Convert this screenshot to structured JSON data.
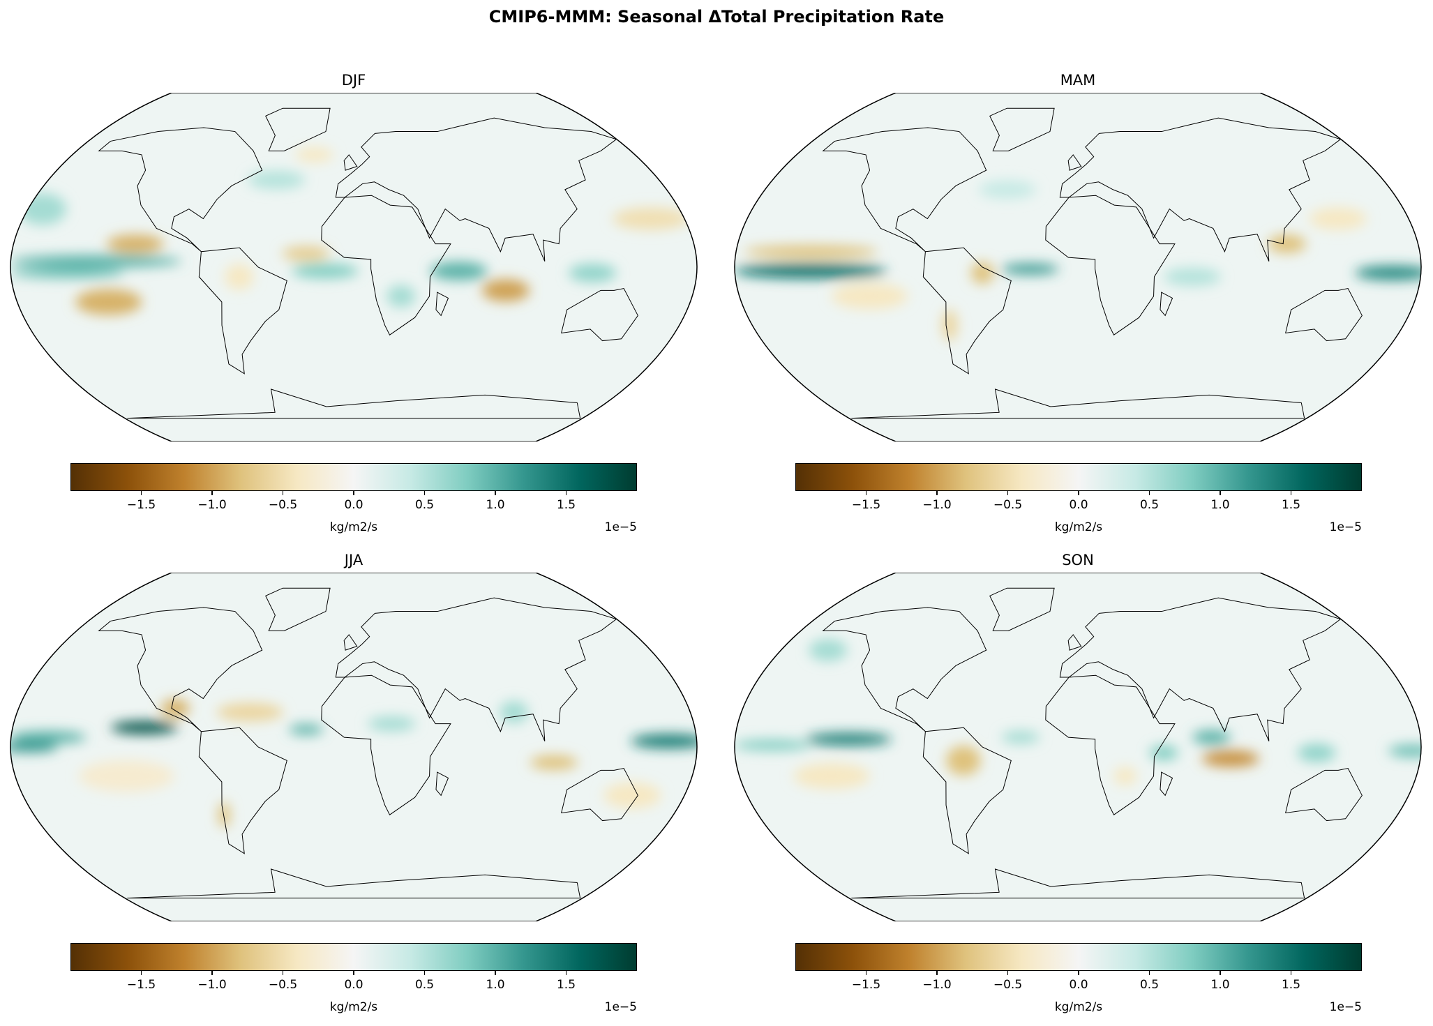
{
  "title": "CMIP6-MMM: Seasonal ΔTotal Precipitation Rate",
  "chart_data": {
    "type": "heatmap",
    "projection": "Robinson",
    "colormap": [
      "#543005",
      "#8c510a",
      "#bf812d",
      "#dfc27d",
      "#f6e8c3",
      "#f5f5f5",
      "#c7eae5",
      "#80cdc1",
      "#35978f",
      "#01665e",
      "#003c30"
    ],
    "colorbar": {
      "label": "kg/m2/s",
      "scale_label": "1e−5",
      "range": [
        -2.0,
        2.0
      ],
      "ticks": [
        -1.5,
        -1.0,
        -0.5,
        0.0,
        0.5,
        1.0,
        1.5
      ],
      "tick_labels": [
        "−1.5",
        "−1.0",
        "−0.5",
        "0.0",
        "0.5",
        "1.0",
        "1.5"
      ]
    },
    "panels": [
      {
        "title": "DJF",
        "regions": [
          {
            "lon": -135,
            "lat": 3,
            "w": 90,
            "h": 5,
            "v": 1.0
          },
          {
            "lon": -150,
            "lat": -3,
            "w": 60,
            "h": 4,
            "v": 0.9
          },
          {
            "lon": -115,
            "lat": 12,
            "w": 30,
            "h": 8,
            "v": -0.9
          },
          {
            "lon": -130,
            "lat": -18,
            "w": 35,
            "h": 12,
            "v": -0.9
          },
          {
            "lon": -25,
            "lat": 7,
            "w": 25,
            "h": 6,
            "v": -0.7
          },
          {
            "lon": -15,
            "lat": -2,
            "w": 35,
            "h": 6,
            "v": 0.8
          },
          {
            "lon": 55,
            "lat": -2,
            "w": 30,
            "h": 8,
            "v": 1.0
          },
          {
            "lon": 80,
            "lat": -12,
            "w": 25,
            "h": 10,
            "v": -1.0
          },
          {
            "lon": 160,
            "lat": 25,
            "w": 40,
            "h": 10,
            "v": -0.5
          },
          {
            "lon": -60,
            "lat": -5,
            "w": 15,
            "h": 12,
            "v": -0.4
          },
          {
            "lon": -45,
            "lat": 45,
            "w": 30,
            "h": 8,
            "v": 0.5
          },
          {
            "lon": -25,
            "lat": 58,
            "w": 20,
            "h": 6,
            "v": -0.4
          },
          {
            "lon": 25,
            "lat": -15,
            "w": 15,
            "h": 10,
            "v": 0.6
          },
          {
            "lon": 125,
            "lat": -3,
            "w": 25,
            "h": 8,
            "v": 0.7
          },
          {
            "lon": -170,
            "lat": 30,
            "w": 25,
            "h": 15,
            "v": 0.6
          }
        ]
      },
      {
        "title": "MAM",
        "regions": [
          {
            "lon": -140,
            "lat": -2,
            "w": 80,
            "h": 6,
            "v": 1.5
          },
          {
            "lon": -140,
            "lat": 8,
            "w": 70,
            "h": 5,
            "v": -0.8
          },
          {
            "lon": -25,
            "lat": -1,
            "w": 30,
            "h": 4,
            "v": 1.2
          },
          {
            "lon": -50,
            "lat": -3,
            "w": 12,
            "h": 10,
            "v": -0.8
          },
          {
            "lon": 165,
            "lat": -3,
            "w": 40,
            "h": 6,
            "v": 1.3
          },
          {
            "lon": 110,
            "lat": 12,
            "w": 20,
            "h": 8,
            "v": -0.8
          },
          {
            "lon": -110,
            "lat": -15,
            "w": 40,
            "h": 12,
            "v": -0.4
          },
          {
            "lon": 60,
            "lat": -5,
            "w": 30,
            "h": 8,
            "v": 0.5
          },
          {
            "lon": 140,
            "lat": 25,
            "w": 30,
            "h": 10,
            "v": -0.4
          },
          {
            "lon": -40,
            "lat": 40,
            "w": 30,
            "h": 8,
            "v": 0.4
          },
          {
            "lon": -70,
            "lat": -30,
            "w": 8,
            "h": 15,
            "v": -0.6
          }
        ]
      },
      {
        "title": "JJA",
        "regions": [
          {
            "lon": -110,
            "lat": 10,
            "w": 35,
            "h": 5,
            "v": 1.8
          },
          {
            "lon": -160,
            "lat": 5,
            "w": 40,
            "h": 5,
            "v": 1.0
          },
          {
            "lon": -170,
            "lat": 0,
            "w": 30,
            "h": 4,
            "v": 1.2
          },
          {
            "lon": 165,
            "lat": 3,
            "w": 40,
            "h": 6,
            "v": 1.4
          },
          {
            "lon": -95,
            "lat": 20,
            "w": 15,
            "h": 8,
            "v": -0.9
          },
          {
            "lon": -55,
            "lat": 18,
            "w": 35,
            "h": 8,
            "v": -0.6
          },
          {
            "lon": -25,
            "lat": 9,
            "w": 18,
            "h": 4,
            "v": 1.0
          },
          {
            "lon": 20,
            "lat": 12,
            "w": 25,
            "h": 6,
            "v": 0.6
          },
          {
            "lon": 85,
            "lat": 18,
            "w": 15,
            "h": 10,
            "v": 0.6
          },
          {
            "lon": 105,
            "lat": -8,
            "w": 25,
            "h": 6,
            "v": -0.8
          },
          {
            "lon": -72,
            "lat": -35,
            "w": 6,
            "h": 12,
            "v": -0.8
          },
          {
            "lon": -120,
            "lat": -15,
            "w": 50,
            "h": 15,
            "v": -0.3
          },
          {
            "lon": 150,
            "lat": -25,
            "w": 30,
            "h": 12,
            "v": -0.4
          }
        ]
      },
      {
        "title": "SON",
        "regions": [
          {
            "lon": -120,
            "lat": 4,
            "w": 45,
            "h": 5,
            "v": 1.4
          },
          {
            "lon": -160,
            "lat": 1,
            "w": 40,
            "h": 4,
            "v": 0.8
          },
          {
            "lon": -60,
            "lat": -7,
            "w": 18,
            "h": 14,
            "v": -0.8
          },
          {
            "lon": -30,
            "lat": 5,
            "w": 20,
            "h": 5,
            "v": 0.6
          },
          {
            "lon": 80,
            "lat": -6,
            "w": 30,
            "h": 7,
            "v": -1.1
          },
          {
            "lon": 70,
            "lat": 5,
            "w": 20,
            "h": 6,
            "v": 1.0
          },
          {
            "lon": 45,
            "lat": -3,
            "w": 15,
            "h": 6,
            "v": 0.8
          },
          {
            "lon": 175,
            "lat": -2,
            "w": 25,
            "h": 5,
            "v": 0.9
          },
          {
            "lon": 25,
            "lat": -15,
            "w": 12,
            "h": 8,
            "v": -0.4
          },
          {
            "lon": -130,
            "lat": -15,
            "w": 40,
            "h": 12,
            "v": -0.4
          },
          {
            "lon": 125,
            "lat": -3,
            "w": 20,
            "h": 8,
            "v": 0.7
          },
          {
            "lon": -150,
            "lat": 50,
            "w": 20,
            "h": 10,
            "v": 0.6
          }
        ]
      }
    ]
  }
}
